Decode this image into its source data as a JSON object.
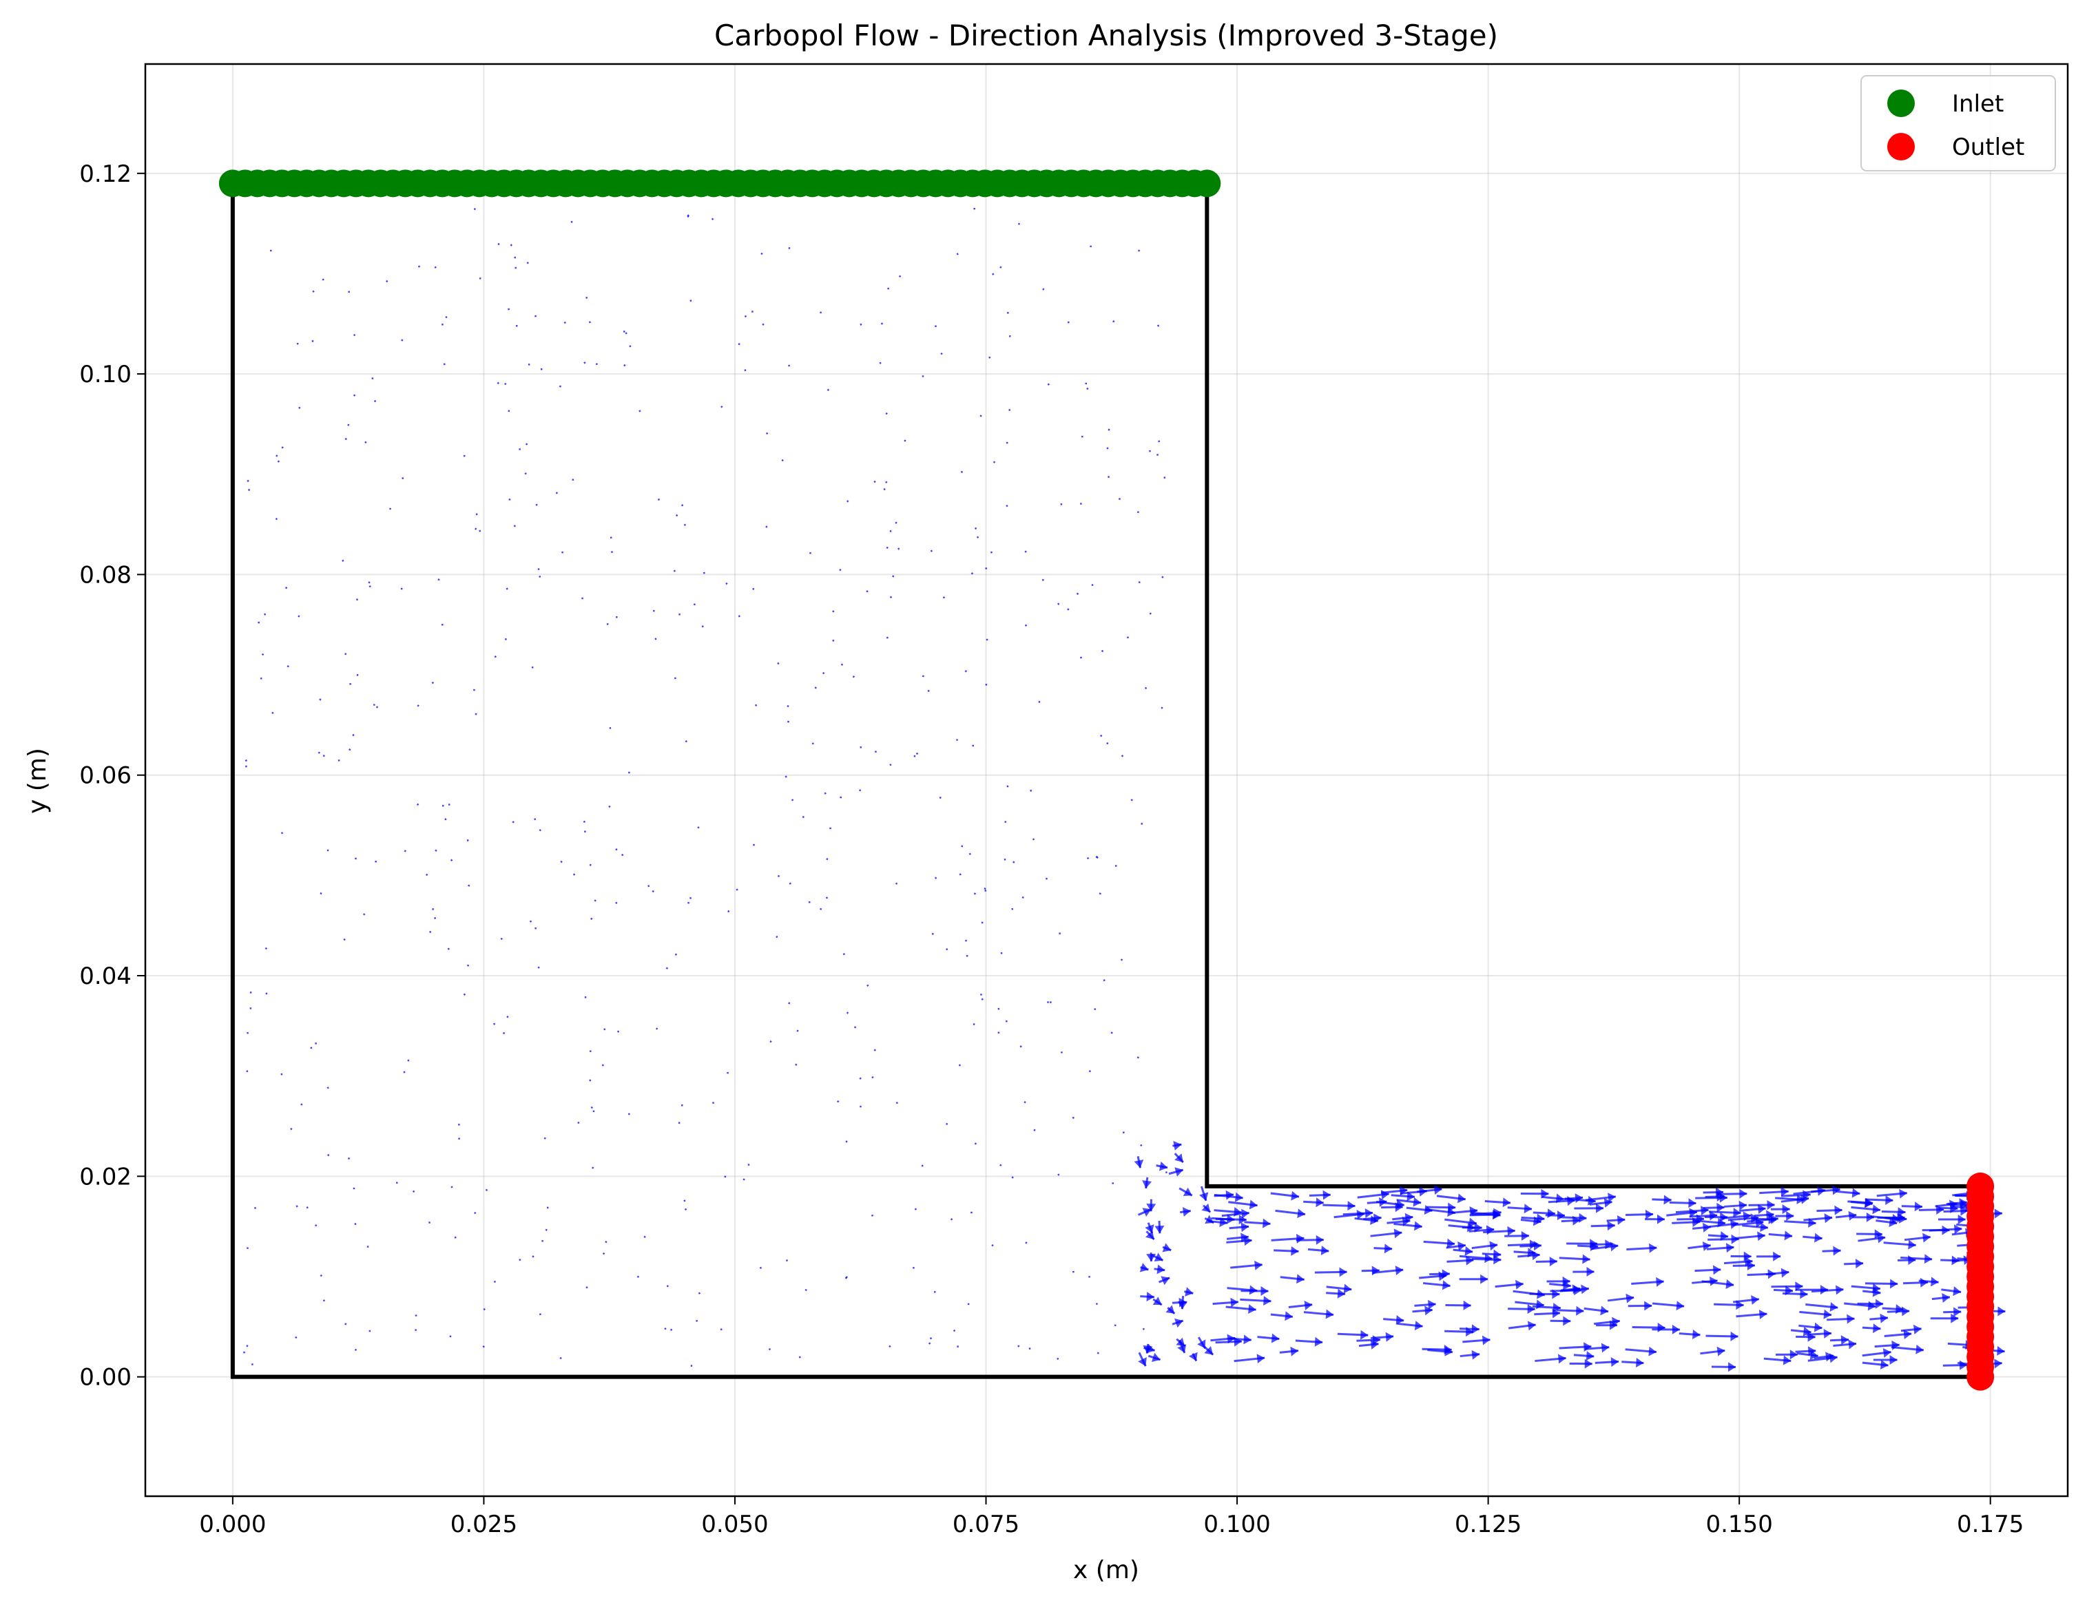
{
  "chart_data": {
    "type": "scatter",
    "title": "Carbopol Flow - Direction Analysis (Improved 3-Stage)",
    "xlabel": "x (m)",
    "ylabel": "y (m)",
    "xlim": [
      -0.0087,
      0.1827
    ],
    "ylim": [
      -0.0119,
      0.1309
    ],
    "grid": true,
    "legend_position": "top-right",
    "x_ticks": [
      "0.000",
      "0.025",
      "0.050",
      "0.075",
      "0.100",
      "0.125",
      "0.150",
      "0.175"
    ],
    "x_tick_values": [
      0,
      0.025,
      0.05,
      0.075,
      0.1,
      0.125,
      0.15,
      0.175
    ],
    "y_ticks": [
      "0.00",
      "0.02",
      "0.04",
      "0.06",
      "0.08",
      "0.10",
      "0.12"
    ],
    "y_tick_values": [
      0,
      0.02,
      0.04,
      0.06,
      0.08,
      0.1,
      0.12
    ],
    "domain_boundary": [
      [
        0,
        0.119
      ],
      [
        0,
        0
      ],
      [
        0.174,
        0
      ],
      [
        0.174,
        0.019
      ],
      [
        0.097,
        0.019
      ],
      [
        0.097,
        0.119
      ]
    ],
    "series": [
      {
        "name": "Inlet",
        "color": "#008000",
        "y": 0.119,
        "x_start": 0,
        "x_end": 0.097,
        "count": 80
      },
      {
        "name": "Outlet",
        "color": "#ff0000",
        "x": 0.174,
        "y_start": 0,
        "y_end": 0.019,
        "count": 20
      }
    ],
    "vector_field": {
      "color": "#0000ff",
      "chamber_arrows": {
        "x_range": [
          0.001,
          0.093
        ],
        "y_range": [
          0.001,
          0.117
        ],
        "count": 520,
        "magnitude": "near zero"
      },
      "channel_arrows": {
        "x_range": [
          0.09,
          0.174
        ],
        "y_range": [
          0.001,
          0.024
        ],
        "count": 360,
        "direction": "+x"
      }
    }
  }
}
